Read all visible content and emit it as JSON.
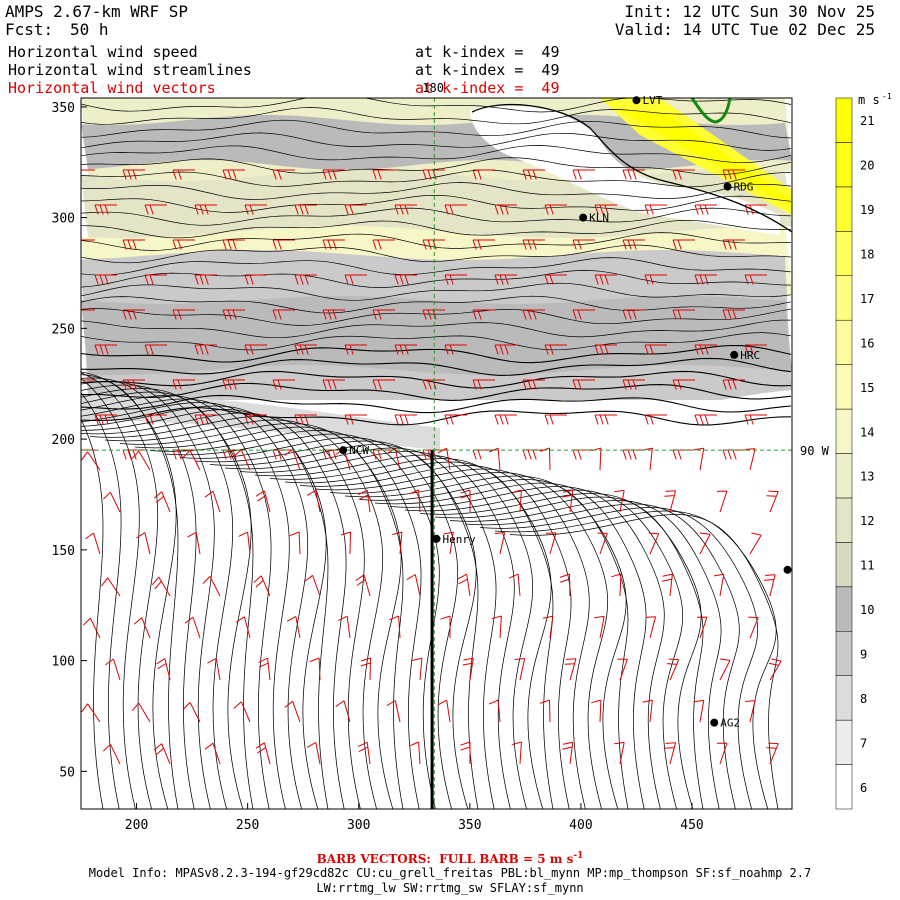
{
  "header": {
    "model_title": "AMPS 2.67-km WRF SP",
    "fcst_label": "Fcst:",
    "fcst_value": "50 h",
    "init": "Init: 12 UTC Sun 30 Nov 25",
    "valid": "Valid: 14 UTC Tue 02 Dec 25"
  },
  "fields": [
    {
      "label": "Horizontal wind speed",
      "level": "at k-index =  49",
      "color": "#000000"
    },
    {
      "label": "Horizontal wind streamlines",
      "level": "at k-index =  49",
      "color": "#000000"
    },
    {
      "label": "Horizontal wind vectors",
      "level": "at k-index =  49",
      "color": "#e00000"
    }
  ],
  "footer": {
    "barb_note": "BARB VECTORS:  FULL BARB = 5 m s",
    "barb_unit_sup": "-1",
    "model_info_1": "Model Info: MPASv8.2.3-194-gf29cd82c CU:cu_grell_freitas PBL:bl_mynn MP:mp_thompson SF:sf_noahmp 2.7",
    "model_info_2": "LW:rrtmg_lw SW:rrtmg_sw SFLAY:sf_mynn"
  },
  "chart_data": {
    "type": "heatmap",
    "title": "Horizontal wind speed / streamlines / vectors at k-index = 49",
    "xlim": [
      175,
      495
    ],
    "ylim": [
      33,
      354
    ],
    "x_ticks": [
      200,
      250,
      300,
      350,
      400,
      450
    ],
    "y_ticks": [
      50,
      100,
      150,
      200,
      250,
      300,
      350
    ],
    "colorbar": {
      "unit": "m s",
      "unit_sup": "-1",
      "levels": [
        6,
        7,
        8,
        9,
        10,
        11,
        12,
        13,
        14,
        15,
        16,
        17,
        18,
        19,
        20,
        21
      ],
      "colors": [
        "#ffffff",
        "#ececec",
        "#dcdcdc",
        "#cacaca",
        "#bababa",
        "#d9d9c2",
        "#e4e4c6",
        "#eeeec8",
        "#f6f6c6",
        "#fbfbb6",
        "#fcfc9c",
        "#fdfd80",
        "#fdfd5c",
        "#fefe30",
        "#fefe10",
        "#ffff00"
      ]
    },
    "meridian_labels": [
      {
        "label": "180",
        "value": 0
      },
      {
        "label": "90 W",
        "value": 0
      }
    ],
    "meridian_180_x": 334,
    "meridian_90w_y": 195,
    "stations": [
      {
        "name": "LVT",
        "x": 425,
        "y": 353
      },
      {
        "name": "RDG",
        "x": 466,
        "y": 314
      },
      {
        "name": "KLN",
        "x": 401,
        "y": 300
      },
      {
        "name": "HRC",
        "x": 469,
        "y": 238
      },
      {
        "name": "NCW",
        "x": 293,
        "y": 195
      },
      {
        "name": "Henry",
        "x": 335,
        "y": 155
      },
      {
        "name": "AG2",
        "x": 460,
        "y": 72
      },
      {
        "name": "",
        "x": 493,
        "y": 141
      }
    ],
    "transect": {
      "x": 333,
      "y_from": 33,
      "y_to": 195
    }
  }
}
